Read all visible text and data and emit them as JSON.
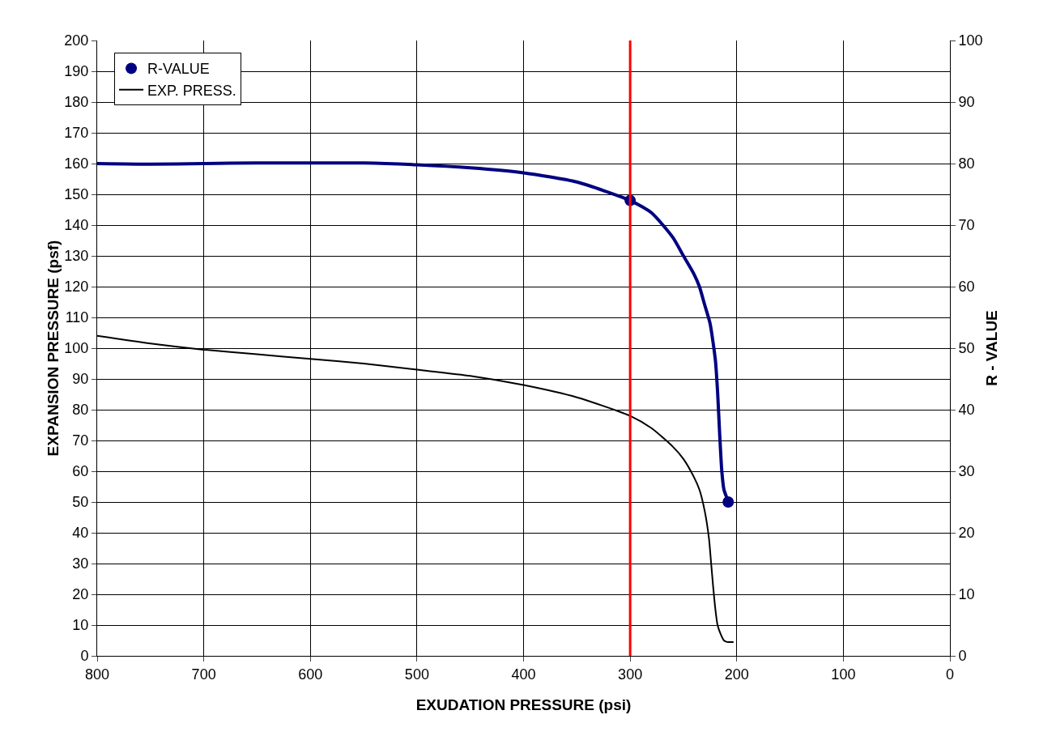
{
  "chart_data": {
    "type": "line",
    "xlabel": "EXUDATION PRESSURE (psi)",
    "ylabel": "EXPANSION PRESSURE (psf)",
    "y2label": "R - VALUE",
    "xlim": [
      800,
      0
    ],
    "xticks": [
      800,
      700,
      600,
      500,
      400,
      300,
      200,
      100,
      0
    ],
    "ylim": [
      0,
      200
    ],
    "yticks": [
      0,
      10,
      20,
      30,
      40,
      50,
      60,
      70,
      80,
      90,
      100,
      110,
      120,
      130,
      140,
      150,
      160,
      170,
      180,
      190,
      200
    ],
    "y2lim": [
      0,
      100
    ],
    "y2ticks": [
      0,
      10,
      20,
      30,
      40,
      50,
      60,
      70,
      80,
      90,
      100
    ],
    "grid": true,
    "legend": "top left",
    "line_style": "solid",
    "series": [
      {
        "axis": "y2",
        "color": "#000080",
        "marker": "none",
        "x": [
          800,
          750,
          700,
          650,
          600,
          550,
          500,
          450,
          400,
          350,
          300,
          280,
          260,
          250,
          240,
          235,
          230,
          225,
          220,
          218,
          216,
          214,
          212,
          210,
          208
        ],
        "values": [
          80,
          79.9,
          80,
          80.1,
          80.1,
          80.1,
          79.8,
          79.3,
          78.5,
          77,
          74,
          72,
          68,
          65,
          62,
          60,
          57,
          54,
          48,
          43,
          36,
          30,
          27,
          26,
          25
        ]
      },
      {
        "name": "R-VALUE",
        "type": "scatter",
        "axis": "y2",
        "color": "#000080",
        "marker": "circle",
        "x": [
          300,
          208
        ],
        "values": [
          74,
          25
        ]
      },
      {
        "name": "EXP. PRESS.",
        "color": "#000000",
        "marker": "none",
        "x": [
          800,
          750,
          700,
          650,
          600,
          550,
          500,
          450,
          400,
          350,
          300,
          280,
          260,
          250,
          240,
          235,
          230,
          226,
          224,
          222,
          220,
          218,
          215,
          212,
          209,
          207,
          203
        ],
        "values": [
          104,
          101.5,
          99.5,
          98,
          96.5,
          95,
          93,
          91,
          88,
          84,
          78,
          74,
          68,
          64,
          58,
          54,
          47,
          38,
          30,
          22,
          15,
          10,
          7,
          5,
          4.5,
          4.5,
          4.5
        ]
      }
    ],
    "ref_lines": [
      {
        "axis": "x",
        "value": 300,
        "color": "#ff0000"
      }
    ]
  }
}
